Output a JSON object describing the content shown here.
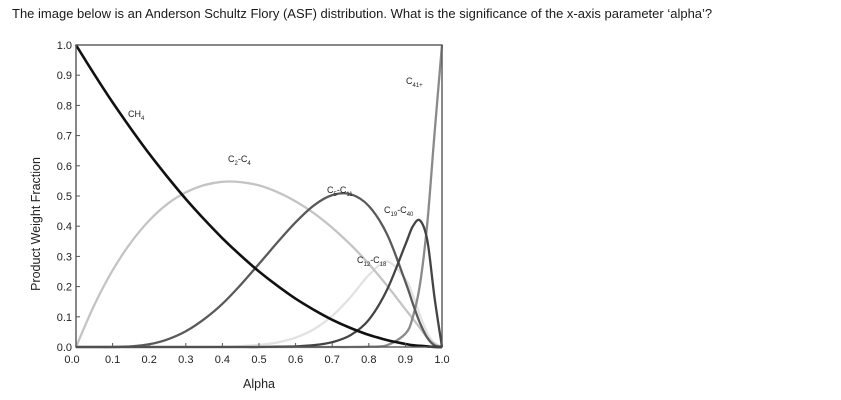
{
  "question": "The image below is an Anderson Schultz Flory (ASF) distribution.  What is the significance of the x-axis parameter ‘alpha’?",
  "chart_data": {
    "type": "line",
    "xlabel": "Alpha",
    "ylabel": "Product Weight Fraction",
    "xlim": [
      0.0,
      1.0
    ],
    "ylim": [
      0.0,
      1.0
    ],
    "x_ticks": [
      "0.0",
      "0.1",
      "0.2",
      "0.3",
      "0.4",
      "0.5",
      "0.6",
      "0.7",
      "0.8",
      "0.9",
      "1.0"
    ],
    "y_ticks": [
      "0.0",
      "0.1",
      "0.2",
      "0.3",
      "0.4",
      "0.5",
      "0.6",
      "0.7",
      "0.8",
      "0.9",
      "1.0"
    ],
    "grid": false,
    "x": [
      0.0,
      0.05,
      0.1,
      0.15,
      0.2,
      0.25,
      0.3,
      0.35,
      0.4,
      0.45,
      0.5,
      0.55,
      0.6,
      0.65,
      0.7,
      0.75,
      0.8,
      0.85,
      0.9,
      0.92,
      0.94,
      0.96,
      0.98,
      1.0
    ],
    "series": [
      {
        "name": "CH4",
        "label_main": "CH",
        "label_sub": "4",
        "color": "#111111",
        "values": [
          1.0,
          0.903,
          0.81,
          0.723,
          0.64,
          0.563,
          0.49,
          0.423,
          0.36,
          0.303,
          0.25,
          0.203,
          0.16,
          0.123,
          0.09,
          0.063,
          0.04,
          0.023,
          0.01,
          0.006,
          0.004,
          0.002,
          0.0,
          0.0
        ]
      },
      {
        "name": "C2-C4",
        "label_main": "C-C",
        "label_sub": "2,4",
        "color": "#c4c4c4",
        "values": [
          0.0,
          0.139,
          0.254,
          0.346,
          0.419,
          0.474,
          0.512,
          0.536,
          0.547,
          0.546,
          0.535,
          0.513,
          0.482,
          0.443,
          0.395,
          0.339,
          0.275,
          0.203,
          0.125,
          0.094,
          0.063,
          0.03,
          0.01,
          0.0
        ]
      },
      {
        "name": "C5-C11",
        "label_main": "C-C",
        "label_sub": "5,11",
        "color": "#5a5a5a",
        "values": [
          0.0,
          0.0,
          0.0,
          0.002,
          0.009,
          0.025,
          0.052,
          0.092,
          0.143,
          0.206,
          0.275,
          0.346,
          0.413,
          0.469,
          0.503,
          0.506,
          0.467,
          0.373,
          0.216,
          0.145,
          0.079,
          0.03,
          0.005,
          0.0
        ]
      },
      {
        "name": "C12-C18",
        "label_main": "C-C",
        "label_sub": "12,18",
        "color": "#e2e2e2",
        "values": [
          0.0,
          0.0,
          0.0,
          0.0,
          0.0,
          0.0,
          0.0,
          0.0,
          0.001,
          0.003,
          0.007,
          0.015,
          0.031,
          0.059,
          0.103,
          0.165,
          0.238,
          0.283,
          0.225,
          0.172,
          0.105,
          0.045,
          0.012,
          0.0
        ]
      },
      {
        "name": "C19-C40",
        "label_main": "C-C",
        "label_sub": "19,40",
        "color": "#444444",
        "values": [
          0.0,
          0.0,
          0.0,
          0.0,
          0.0,
          0.0,
          0.0,
          0.0,
          0.0,
          0.0,
          0.0,
          0.001,
          0.002,
          0.006,
          0.016,
          0.039,
          0.09,
          0.19,
          0.339,
          0.399,
          0.419,
          0.352,
          0.16,
          0.0
        ]
      },
      {
        "name": "C41+",
        "label_main": "C",
        "label_sub": "41+",
        "color": "#8a8a8a",
        "values": [
          0.0,
          0.0,
          0.0,
          0.0,
          0.0,
          0.0,
          0.0,
          0.0,
          0.0,
          0.0,
          0.0,
          0.0,
          0.0,
          0.0,
          0.0,
          0.0,
          0.001,
          0.006,
          0.044,
          0.098,
          0.208,
          0.413,
          0.713,
          1.0
        ]
      }
    ]
  }
}
